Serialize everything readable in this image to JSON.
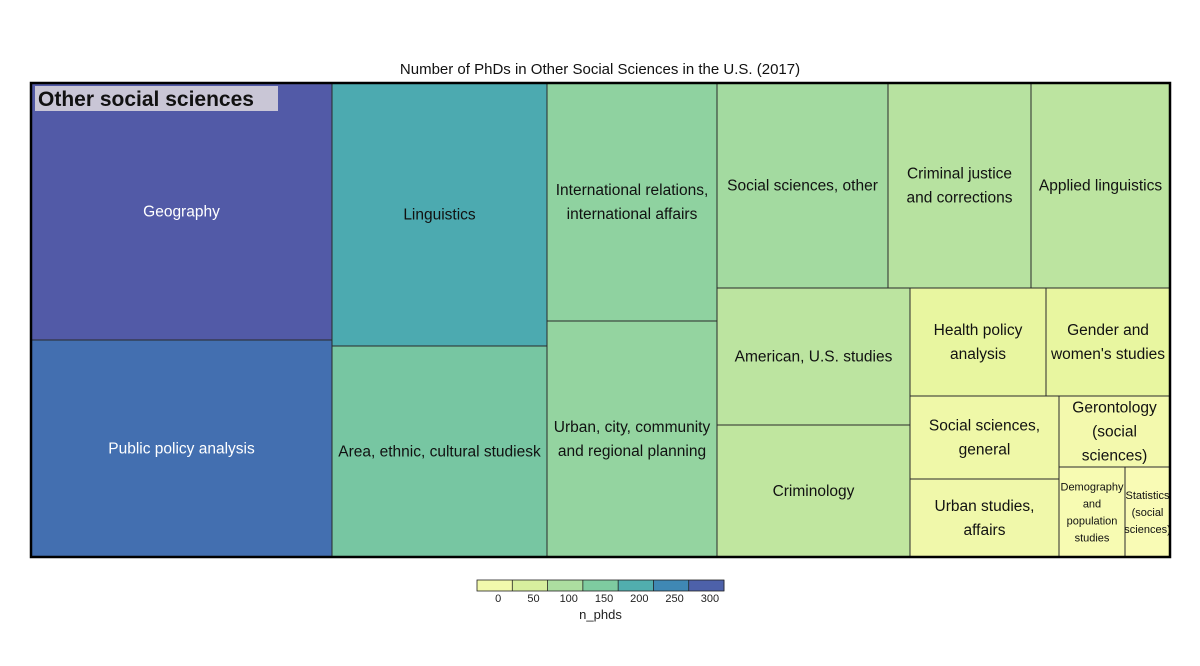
{
  "chart_data": {
    "type": "treemap",
    "title": "Number of PhDs in Other Social Sciences in the U.S. (2017)",
    "group": "Other social sciences",
    "value_name": "n_phds",
    "items": [
      {
        "label": "Geography",
        "value": 310
      },
      {
        "label": "Public policy analysis",
        "value": 285
      },
      {
        "label": "Linguistics",
        "value": 215
      },
      {
        "label": "Area, ethnic, cultural studiesk",
        "value": 170
      },
      {
        "label": "International relations, international affairs",
        "value": 145
      },
      {
        "label": "Urban, city, community and regional planning",
        "value": 140
      },
      {
        "label": "Social sciences, other",
        "value": 125
      },
      {
        "label": "Criminal justice and corrections",
        "value": 105
      },
      {
        "label": "Applied linguistics",
        "value": 100
      },
      {
        "label": "American, U.S. studies",
        "value": 100
      },
      {
        "label": "Criminology",
        "value": 95
      },
      {
        "label": "Health policy analysis",
        "value": 48
      },
      {
        "label": "Gender and women's studies",
        "value": 48
      },
      {
        "label": "Social sciences, general",
        "value": 32
      },
      {
        "label": "Urban studies, affairs",
        "value": 28
      },
      {
        "label": "Gerontology (social sciences)",
        "value": 20
      },
      {
        "label": "Demography and population studies",
        "value": 10
      },
      {
        "label": "Statistics (social sciences)",
        "value": 5
      }
    ],
    "legend": {
      "title": "n_phds",
      "ticks": [
        "0",
        "50",
        "100",
        "150",
        "200",
        "250",
        "300"
      ],
      "range": [
        0,
        325
      ],
      "palette": [
        "#fbfcb7",
        "#e6f59d",
        "#b4e1a0",
        "#7ecba0",
        "#4aa9b0",
        "#3a7bb5",
        "#5b4ea2"
      ],
      "position": "bottom"
    }
  }
}
